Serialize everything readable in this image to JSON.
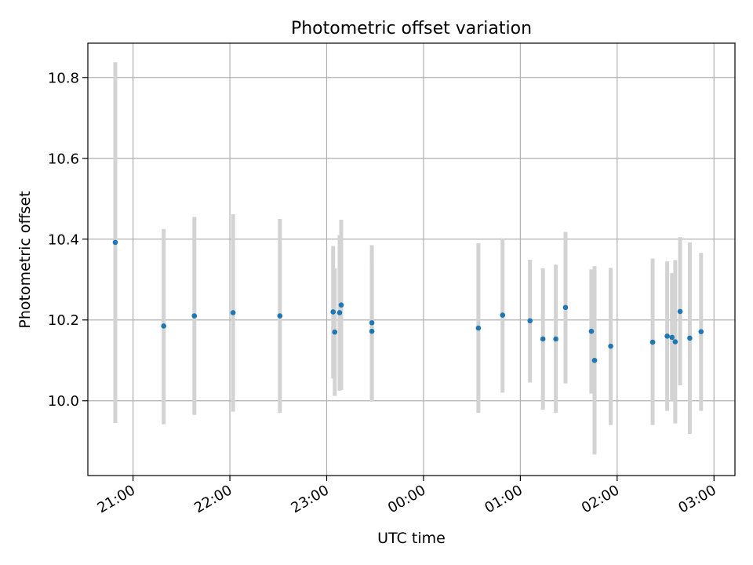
{
  "chart_data": {
    "type": "scatter",
    "title": "Photometric offset variation",
    "xlabel": "UTC time",
    "ylabel": "Photometric offset",
    "grid": true,
    "xlim": [
      "20:32",
      "03:13"
    ],
    "ylim": [
      9.815,
      10.885
    ],
    "xticks": [
      "21:00",
      "22:00",
      "23:00",
      "00:00",
      "01:00",
      "02:00",
      "03:00"
    ],
    "yticks": [
      "10.0",
      "10.2",
      "10.4",
      "10.6",
      "10.8"
    ],
    "colors": {
      "point": "#1f77b4",
      "errorbar": "#d3d3d3",
      "grid": "#b0b0b0"
    },
    "series": [
      {
        "marker": "point",
        "errorbars": "vertical",
        "points": [
          {
            "x": "20:49",
            "y": 10.392,
            "ylow": 9.945,
            "yhigh": 10.838
          },
          {
            "x": "21:19",
            "y": 10.185,
            "ylow": 9.942,
            "yhigh": 10.425
          },
          {
            "x": "21:38",
            "y": 10.21,
            "ylow": 9.965,
            "yhigh": 10.455
          },
          {
            "x": "22:02",
            "y": 10.218,
            "ylow": 9.973,
            "yhigh": 10.462
          },
          {
            "x": "22:31",
            "y": 10.21,
            "ylow": 9.97,
            "yhigh": 10.45
          },
          {
            "x": "23:04",
            "y": 10.22,
            "ylow": 10.055,
            "yhigh": 10.383
          },
          {
            "x": "23:05",
            "y": 10.17,
            "ylow": 10.012,
            "yhigh": 10.328
          },
          {
            "x": "23:08",
            "y": 10.218,
            "ylow": 10.025,
            "yhigh": 10.41
          },
          {
            "x": "23:09",
            "y": 10.237,
            "ylow": 10.027,
            "yhigh": 10.448
          },
          {
            "x": "23:28",
            "y": 10.193,
            "ylow": 9.998,
            "yhigh": 10.385
          },
          {
            "x": "23:28",
            "y": 10.172,
            "ylow": 10.0,
            "yhigh": 10.34
          },
          {
            "x": "00:34",
            "y": 10.18,
            "ylow": 9.97,
            "yhigh": 10.39
          },
          {
            "x": "00:49",
            "y": 10.212,
            "ylow": 10.02,
            "yhigh": 10.402
          },
          {
            "x": "01:06",
            "y": 10.198,
            "ylow": 10.045,
            "yhigh": 10.349
          },
          {
            "x": "01:14",
            "y": 10.153,
            "ylow": 9.978,
            "yhigh": 10.328
          },
          {
            "x": "01:22",
            "y": 10.153,
            "ylow": 9.97,
            "yhigh": 10.337
          },
          {
            "x": "01:28",
            "y": 10.231,
            "ylow": 10.043,
            "yhigh": 10.418
          },
          {
            "x": "01:44",
            "y": 10.172,
            "ylow": 10.018,
            "yhigh": 10.325
          },
          {
            "x": "01:46",
            "y": 10.1,
            "ylow": 9.867,
            "yhigh": 10.333
          },
          {
            "x": "01:56",
            "y": 10.135,
            "ylow": 9.94,
            "yhigh": 10.329
          },
          {
            "x": "02:22",
            "y": 10.145,
            "ylow": 9.94,
            "yhigh": 10.352
          },
          {
            "x": "02:31",
            "y": 10.16,
            "ylow": 9.975,
            "yhigh": 10.345
          },
          {
            "x": "02:34",
            "y": 10.157,
            "ylow": 9.998,
            "yhigh": 10.316
          },
          {
            "x": "02:36",
            "y": 10.146,
            "ylow": 9.944,
            "yhigh": 10.348
          },
          {
            "x": "02:39",
            "y": 10.221,
            "ylow": 10.038,
            "yhigh": 10.405
          },
          {
            "x": "02:45",
            "y": 10.155,
            "ylow": 9.918,
            "yhigh": 10.392
          },
          {
            "x": "02:52",
            "y": 10.171,
            "ylow": 9.975,
            "yhigh": 10.366
          }
        ]
      }
    ]
  }
}
